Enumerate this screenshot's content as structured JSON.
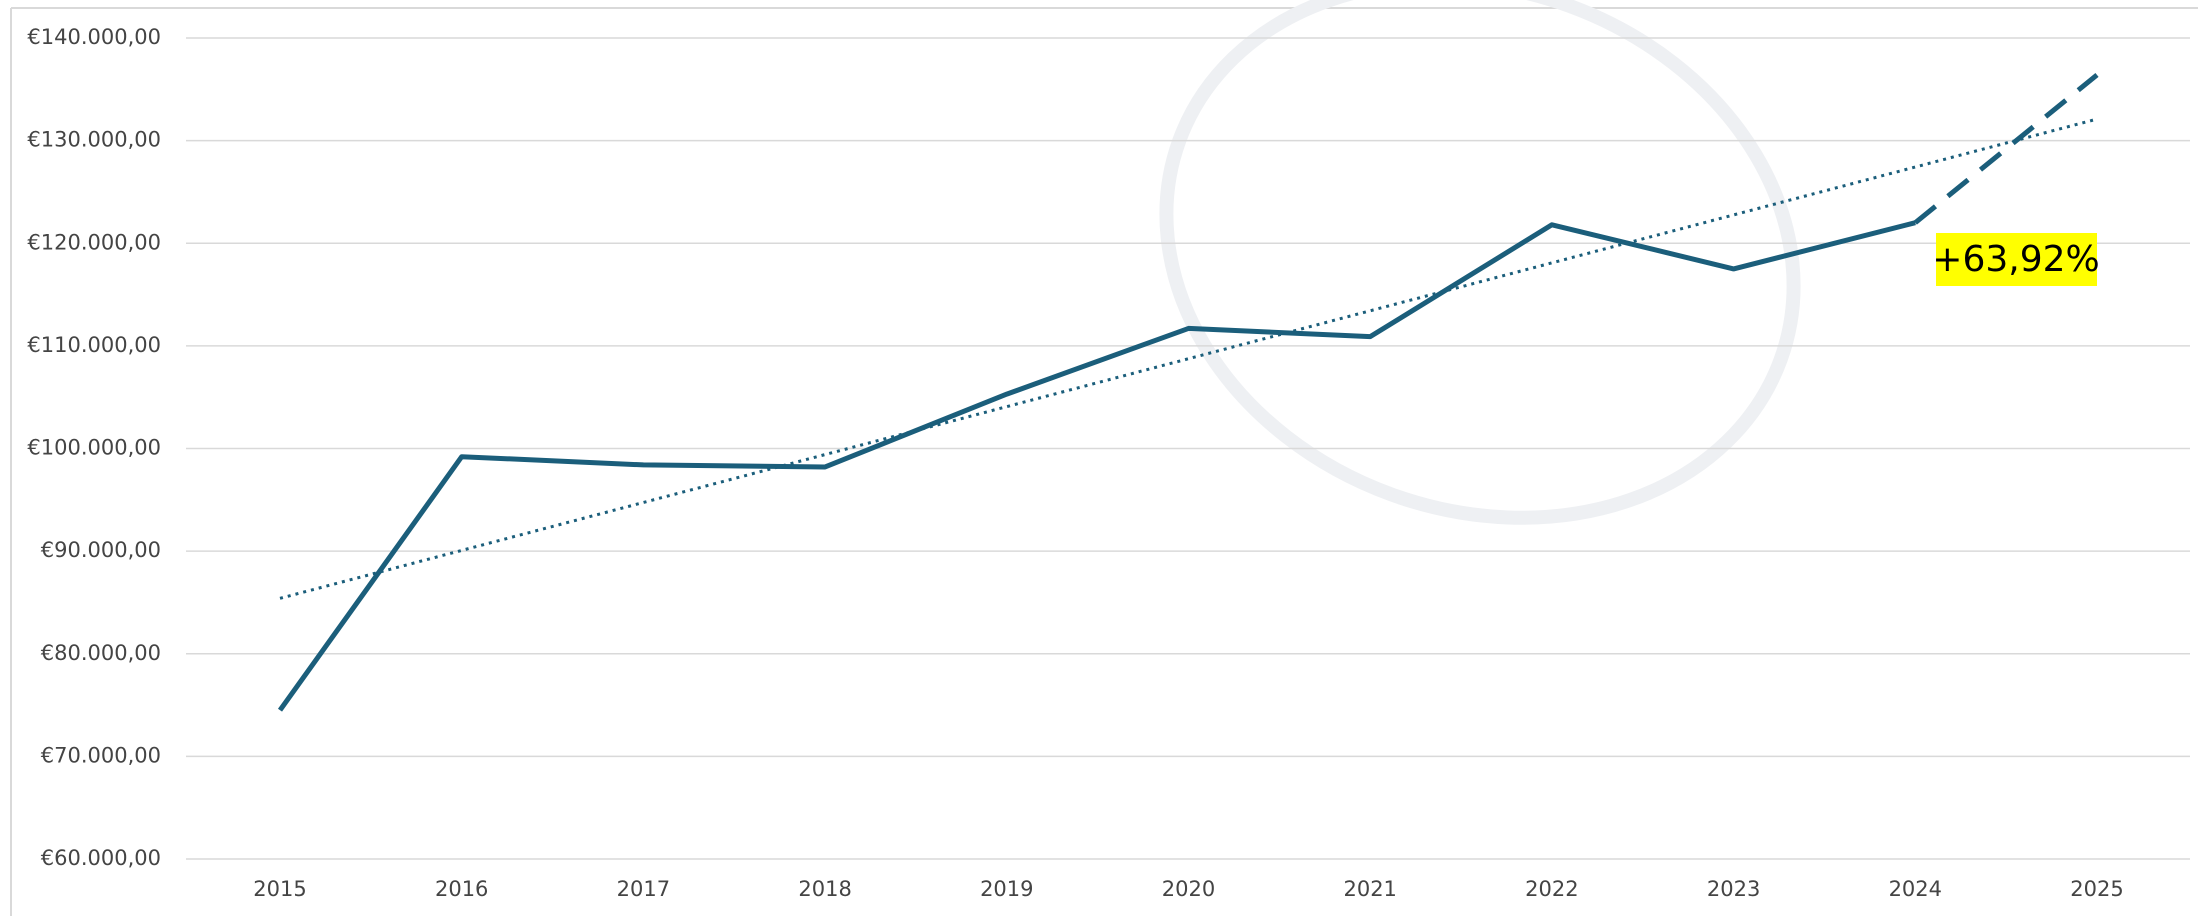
{
  "chart_data": {
    "type": "line",
    "categories": [
      "2015",
      "2016",
      "2017",
      "2018",
      "2019",
      "2020",
      "2021",
      "2022",
      "2023",
      "2024",
      "2025"
    ],
    "series": [
      {
        "color": "#1b5e7b",
        "values": [
          74500,
          99200,
          98400,
          98200,
          105300,
          111700,
          110900,
          121800,
          117500,
          122000,
          136400
        ],
        "dashed_from_index": 9
      }
    ],
    "trendline": [
      85400,
      132100
    ],
    "ylim": [
      60000,
      140000
    ],
    "yticks": [
      {
        "value": 60000,
        "label": "€60.000,00"
      },
      {
        "value": 70000,
        "label": "€70.000,00"
      },
      {
        "value": 80000,
        "label": "€80.000,00"
      },
      {
        "value": 90000,
        "label": "€90.000,00"
      },
      {
        "value": 100000,
        "label": "€100.000,00"
      },
      {
        "value": 110000,
        "label": "€110.000,00"
      },
      {
        "value": 120000,
        "label": "€120.000,00"
      },
      {
        "value": 130000,
        "label": "€130.000,00"
      },
      {
        "value": 140000,
        "label": "€140.000,00"
      }
    ],
    "grid": true,
    "annotation": "+63,92%"
  }
}
